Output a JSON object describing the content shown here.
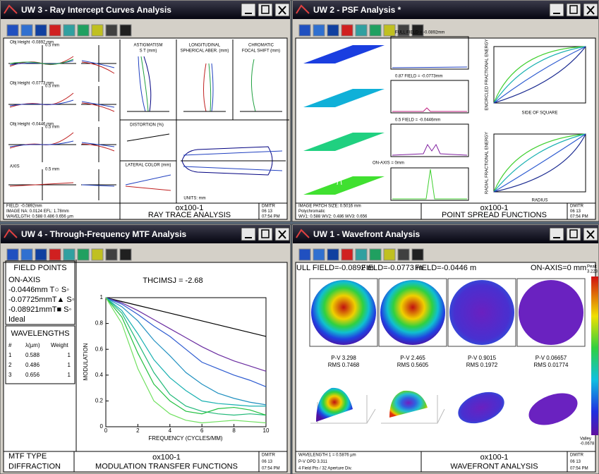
{
  "windows": [
    {
      "title": "UW 3 - Ray Intercept Curves Analysis",
      "footer": {
        "left": [
          "FIELD: -0.0892mm",
          "IMAGE NA: 0.0124      EFL: 1.78mm",
          "WAVELGTH: 0.588 0.486 0.656 µm"
        ],
        "project": "ox100-1",
        "caption": "RAY TRACE ANALYSIS",
        "stamp": [
          "DMITR",
          "06 13",
          "07:54 PM"
        ]
      }
    },
    {
      "title": "UW 2 - PSF Analysis *",
      "footer": {
        "left": [
          "IMAGE PATCH SIZE: 0.5016 mm",
          "Polychromatic",
          "WV1: 0.588 WV2: 0.486 WV3: 0.656"
        ],
        "project": "ox100-1",
        "caption": "POINT SPREAD FUNCTIONS",
        "stamp": [
          "DMITR",
          "06 13",
          "07:54 PM"
        ]
      }
    },
    {
      "title": "UW 4 - Through-Frequency MTF Analysis",
      "footer": {
        "left": [
          "MTF TYPE",
          "DIFFRACTION"
        ],
        "project": "ox100-1",
        "caption": "MODULATION TRANSFER FUNCTIONS",
        "stamp": [
          "DMITR",
          "06 13",
          "07:54 PM"
        ]
      }
    },
    {
      "title": "UW 1 - Wavefront Analysis",
      "footer": {
        "left": [
          "WAVELENGTH 1 = 0.5876 µm",
          "P-V OPD 3.311",
          "4 Field Pts / 32 Aperture Div."
        ],
        "project": "ox100-1",
        "caption": "WAVEFRONT ANALYSIS",
        "stamp": [
          "DMITR",
          "06 13",
          "07:54 PM"
        ]
      }
    }
  ],
  "ray_intercept": {
    "fields": [
      "Obj Height -0.0892 mm",
      "Obj Height -0.0773 mm",
      "Obj Height -0.0446 mm",
      "AXIS"
    ],
    "fan_scale": "0.5 mm",
    "panels": [
      "ASTIGMATISM",
      "S T (mm)",
      "LONGITUDINAL",
      "SPHERICAL ABER. (mm)",
      "CHROMATIC",
      "FOCAL SHIFT (mm)",
      "DISTORTION (%)",
      "LATERAL COLOR (mm)",
      "UNITS: mm"
    ]
  },
  "psf": {
    "fields": [
      "FULL FIELD = -0.0892mm",
      "0.87 FIELD = -0.0773mm",
      "0.5 FIELD = -0.0446mm",
      "ON-AXIS = 0mm"
    ],
    "energy_labels": [
      "ENCIRCLED FRACTIONAL ENERGY",
      "SIDE OF SQUARE",
      "RADIAL FRACTIONAL ENERGY",
      "RADIUS"
    ]
  },
  "mtf": {
    "field_points_title": "FIELD POINTS",
    "field_points": [
      {
        "label": "ON-AXIS",
        "color": "#6a2ca0"
      },
      {
        "label": "-0.0446mm T○ S◦",
        "color": "#2d5bd0"
      },
      {
        "label": "-0.07725mmT▲ S◦",
        "color": "#18b0b0"
      },
      {
        "label": "-0.08921mmT■ S◦",
        "color": "#22c040"
      },
      {
        "label": "Ideal",
        "color": "#000000"
      }
    ],
    "wavelengths_title": "WAVELENGTHS",
    "wavelength_header": [
      "#",
      "λ(µm)",
      "Weight"
    ],
    "wavelengths": [
      [
        "1",
        "0.588",
        "1"
      ],
      [
        "2",
        "0.486",
        "1"
      ],
      [
        "3",
        "0.656",
        "1"
      ]
    ],
    "chart": {
      "type": "line",
      "title": "THCIMSJ = -2.68",
      "x_label": "FREQUENCY (CYCLES/MM)",
      "y_label": "MODULATION",
      "x": [
        0,
        1,
        2,
        3,
        4,
        5,
        6,
        7,
        8,
        9,
        10
      ],
      "xlim": [
        0,
        10
      ],
      "ylim": [
        0,
        1
      ],
      "xticks": [
        0,
        2,
        4,
        6,
        8,
        10
      ],
      "yticks": [
        0,
        0.2,
        0.4,
        0.6,
        0.8,
        1
      ],
      "series": [
        {
          "color": "#000000",
          "values": [
            1,
            0.97,
            0.94,
            0.91,
            0.88,
            0.85,
            0.82,
            0.79,
            0.76,
            0.73,
            0.7
          ]
        },
        {
          "color": "#6a2ca0",
          "values": [
            1,
            0.96,
            0.9,
            0.83,
            0.76,
            0.69,
            0.62,
            0.56,
            0.51,
            0.47,
            0.43
          ]
        },
        {
          "color": "#2d5bd0",
          "values": [
            1,
            0.95,
            0.87,
            0.78,
            0.7,
            0.6,
            0.5,
            0.45,
            0.4,
            0.36,
            0.31
          ]
        },
        {
          "color": "#2090c0",
          "values": [
            1,
            0.93,
            0.82,
            0.67,
            0.55,
            0.42,
            0.33,
            0.26,
            0.22,
            0.19,
            0.17
          ]
        },
        {
          "color": "#18b0b0",
          "values": [
            1,
            0.9,
            0.72,
            0.52,
            0.38,
            0.28,
            0.2,
            0.18,
            0.17,
            0.16,
            0.16
          ]
        },
        {
          "color": "#20b878",
          "values": [
            1,
            0.88,
            0.65,
            0.42,
            0.25,
            0.16,
            0.12,
            0.1,
            0.09,
            0.1,
            0.09
          ]
        },
        {
          "color": "#22c040",
          "values": [
            1,
            0.85,
            0.57,
            0.33,
            0.2,
            0.12,
            0.1,
            0.14,
            0.15,
            0.13,
            0.09
          ]
        },
        {
          "color": "#70e060",
          "values": [
            1,
            0.8,
            0.45,
            0.2,
            0.1,
            0.05,
            0.03,
            0.04,
            0.05,
            0.04,
            0.03
          ]
        }
      ]
    }
  },
  "wavefront": {
    "fields": [
      "ULL FIELD=-0.0892 m",
      "FIELD=-0.0773 m",
      "FIELD=-0.0446 m",
      "ON-AXIS=0 mm"
    ],
    "stats": [
      [
        "P-V 3.298",
        "RMS 0.7468"
      ],
      [
        "P-V 2.465",
        "RMS 0.5605"
      ],
      [
        "P-V 0.9015",
        "RMS 0.1972"
      ],
      [
        "P-V 0.06657",
        "RMS 0.01774"
      ]
    ],
    "peak": [
      "Peak",
      "3.223"
    ],
    "valley": [
      "Valley",
      "-0.0678"
    ]
  }
}
